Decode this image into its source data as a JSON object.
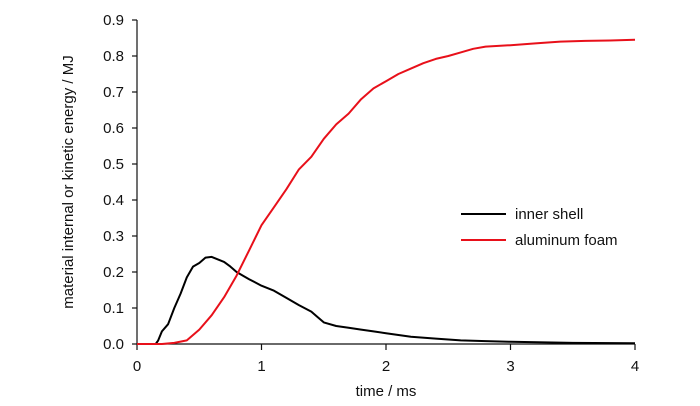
{
  "chart_data": {
    "type": "line",
    "xlabel": "time / ms",
    "ylabel": "material internal or kinetic energy / MJ",
    "xlim": [
      0,
      4
    ],
    "ylim": [
      0,
      0.9
    ],
    "xticks": [
      "0",
      "1",
      "2",
      "3",
      "4"
    ],
    "yticks": [
      "0.0",
      "0.1",
      "0.2",
      "0.3",
      "0.4",
      "0.5",
      "0.6",
      "0.7",
      "0.8",
      "0.9"
    ],
    "grid": false,
    "legend_position": "right",
    "series": [
      {
        "name": "inner shell",
        "color": "#000000",
        "points": [
          [
            0.0,
            0.0
          ],
          [
            0.15,
            0.0
          ],
          [
            0.17,
            0.01
          ],
          [
            0.2,
            0.035
          ],
          [
            0.25,
            0.055
          ],
          [
            0.3,
            0.1
          ],
          [
            0.35,
            0.14
          ],
          [
            0.4,
            0.185
          ],
          [
            0.45,
            0.215
          ],
          [
            0.5,
            0.225
          ],
          [
            0.55,
            0.24
          ],
          [
            0.6,
            0.242
          ],
          [
            0.65,
            0.235
          ],
          [
            0.7,
            0.228
          ],
          [
            0.75,
            0.215
          ],
          [
            0.8,
            0.2
          ],
          [
            0.85,
            0.19
          ],
          [
            0.9,
            0.18
          ],
          [
            1.0,
            0.162
          ],
          [
            1.1,
            0.148
          ],
          [
            1.2,
            0.128
          ],
          [
            1.3,
            0.108
          ],
          [
            1.4,
            0.09
          ],
          [
            1.45,
            0.075
          ],
          [
            1.5,
            0.06
          ],
          [
            1.6,
            0.05
          ],
          [
            1.7,
            0.045
          ],
          [
            1.8,
            0.04
          ],
          [
            1.9,
            0.035
          ],
          [
            2.0,
            0.03
          ],
          [
            2.2,
            0.02
          ],
          [
            2.4,
            0.015
          ],
          [
            2.6,
            0.01
          ],
          [
            2.8,
            0.008
          ],
          [
            3.0,
            0.006
          ],
          [
            3.5,
            0.003
          ],
          [
            4.0,
            0.002
          ]
        ]
      },
      {
        "name": "aluminum foam",
        "color": "#e8101a",
        "points": [
          [
            0.0,
            0.0
          ],
          [
            0.2,
            0.0
          ],
          [
            0.3,
            0.003
          ],
          [
            0.4,
            0.01
          ],
          [
            0.5,
            0.04
          ],
          [
            0.6,
            0.08
          ],
          [
            0.7,
            0.13
          ],
          [
            0.8,
            0.19
          ],
          [
            0.9,
            0.26
          ],
          [
            1.0,
            0.33
          ],
          [
            1.1,
            0.38
          ],
          [
            1.2,
            0.43
          ],
          [
            1.3,
            0.485
          ],
          [
            1.4,
            0.52
          ],
          [
            1.5,
            0.57
          ],
          [
            1.6,
            0.61
          ],
          [
            1.7,
            0.64
          ],
          [
            1.8,
            0.68
          ],
          [
            1.9,
            0.71
          ],
          [
            2.0,
            0.73
          ],
          [
            2.1,
            0.75
          ],
          [
            2.2,
            0.765
          ],
          [
            2.3,
            0.78
          ],
          [
            2.4,
            0.792
          ],
          [
            2.5,
            0.8
          ],
          [
            2.6,
            0.81
          ],
          [
            2.7,
            0.82
          ],
          [
            2.8,
            0.826
          ],
          [
            3.0,
            0.83
          ],
          [
            3.2,
            0.835
          ],
          [
            3.4,
            0.84
          ],
          [
            3.6,
            0.842
          ],
          [
            3.8,
            0.843
          ],
          [
            4.0,
            0.845
          ]
        ]
      }
    ]
  }
}
